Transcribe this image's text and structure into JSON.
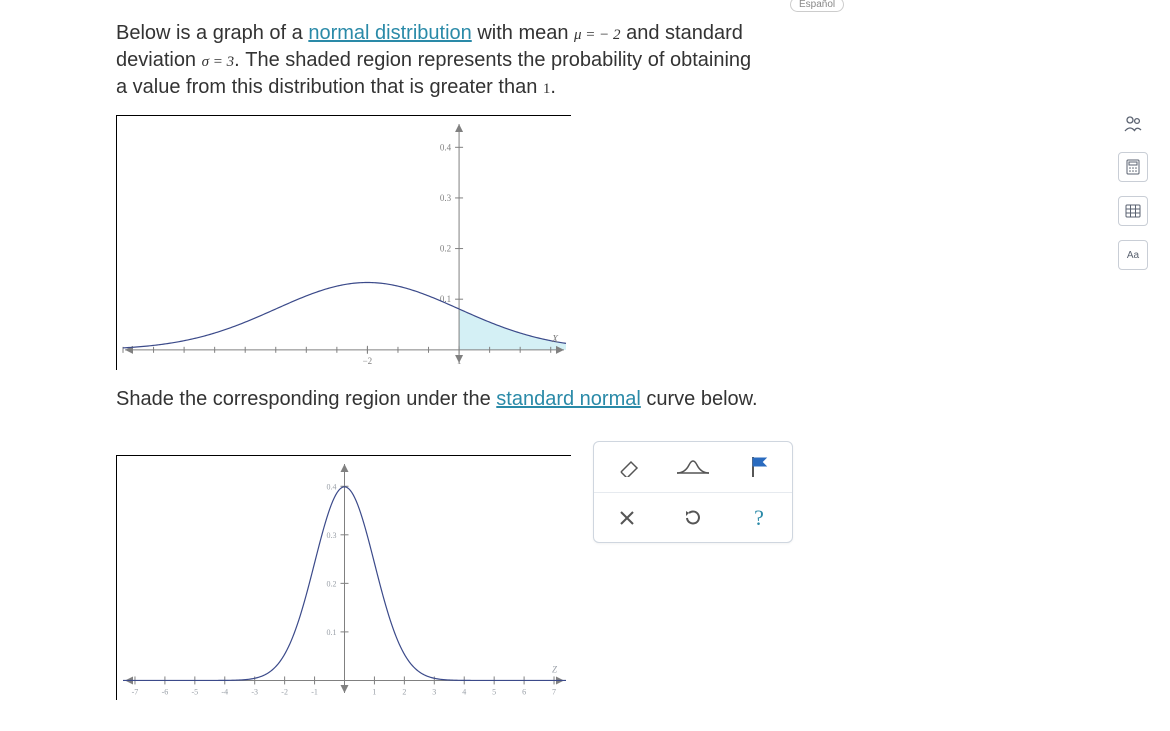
{
  "language_label": "Español",
  "problem": {
    "line1_pre": "Below is a graph of a ",
    "link1": "normal distribution",
    "line1_mid": " with mean ",
    "mu_expr": "μ = − 2",
    "line1_post": " and standard",
    "line2_pre": "deviation ",
    "sigma_expr": "σ = 3",
    "line2_mid": ". The shaded region represents the probability of obtaining",
    "line3": "a value from this distribution that is greater than ",
    "threshold": "1",
    "line3_post": "."
  },
  "instruction2_pre": "Shade the corresponding region under the ",
  "instruction2_link": "standard normal",
  "instruction2_post": " curve below.",
  "chart1": {
    "type": "normal-pdf",
    "xlim": [
      -10,
      4.5
    ],
    "ylim": [
      -0.03,
      0.45
    ],
    "x_ticks_labeled": [
      -2,
      1
    ],
    "x_tick_labels": [
      "−2",
      "1"
    ],
    "y_ticks": [
      0.1,
      0.2,
      0.3,
      0.4
    ],
    "y_tick_labels": [
      "0.1",
      "0.2",
      "0.3",
      "0.4"
    ],
    "mean": -2,
    "sd": 3,
    "shade_from": 1,
    "shade_to": 4.5,
    "axis_label": "X",
    "curve_color": "#3b4a8a",
    "shade_fill": "#cfeef4",
    "shade_opacity": 0.9,
    "axis_color": "#808080",
    "tick_color": "#808080",
    "label_color": "#808080",
    "label_fontsize": 9,
    "bg": "#ffffff",
    "line_width": 1.2,
    "y_axis_x": 1
  },
  "chart2": {
    "type": "normal-pdf",
    "xlim": [
      -7.4,
      7.4
    ],
    "ylim": [
      -0.03,
      0.45
    ],
    "x_ticks": [
      -7,
      -6,
      -5,
      -4,
      -3,
      -2,
      -1,
      1,
      2,
      3,
      4,
      5,
      6,
      7
    ],
    "x_tick_labels": [
      "-7",
      "-6",
      "-5",
      "-4",
      "-3",
      "-2",
      "-1",
      "1",
      "2",
      "3",
      "4",
      "5",
      "6",
      "7"
    ],
    "y_ticks": [
      0.1,
      0.2,
      0.3,
      0.4
    ],
    "y_tick_labels": [
      "0.1",
      "0.2",
      "0.3",
      "0.4"
    ],
    "mean": 0,
    "sd": 1,
    "axis_label": "Z",
    "curve_color": "#3b4a8a",
    "axis_color": "#808080",
    "tick_color": "#808080",
    "label_color": "#9aa0a8",
    "label_fontsize": 8,
    "bg": "#ffffff",
    "line_width": 1.2,
    "y_axis_x": 0
  },
  "toolbox": {
    "tools": [
      "eraser",
      "curve-tool",
      "flag"
    ],
    "actions": [
      "close",
      "reset",
      "help"
    ]
  },
  "sidebar_icons": [
    "group-icon",
    "calculator-icon",
    "keypad-icon",
    "aa-icon"
  ]
}
